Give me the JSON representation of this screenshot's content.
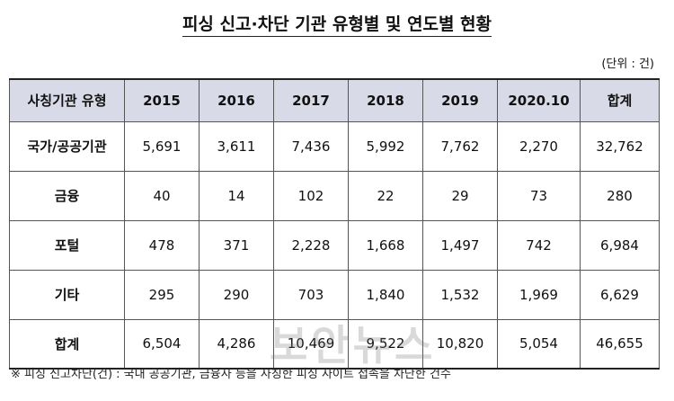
{
  "title": "피싱 신고·차단 기관 유형별 및 연도별 현황",
  "unit": "(단위 : 건)",
  "table": {
    "headers": [
      "사칭기관 유형",
      "2015",
      "2016",
      "2017",
      "2018",
      "2019",
      "2020.10",
      "합계"
    ],
    "rows": [
      [
        "국가/공공기관",
        "5,691",
        "3,611",
        "7,436",
        "5,992",
        "7,762",
        "2,270",
        "32,762"
      ],
      [
        "금융",
        "40",
        "14",
        "102",
        "22",
        "29",
        "73",
        "280"
      ],
      [
        "포털",
        "478",
        "371",
        "2,228",
        "1,668",
        "1,497",
        "742",
        "6,984"
      ],
      [
        "기타",
        "295",
        "290",
        "703",
        "1,840",
        "1,532",
        "1,969",
        "6,629"
      ],
      [
        "합계",
        "6,504",
        "4,286",
        "10,469",
        "9,522",
        "10,820",
        "5,054",
        "46,655"
      ]
    ]
  },
  "footnote": "※  피싱 신고차단(건) : 국내 공공기관, 금융사 등을 사칭한 피싱 사이트 접속을 차단한 건수",
  "watermark": "보안뉴스"
}
